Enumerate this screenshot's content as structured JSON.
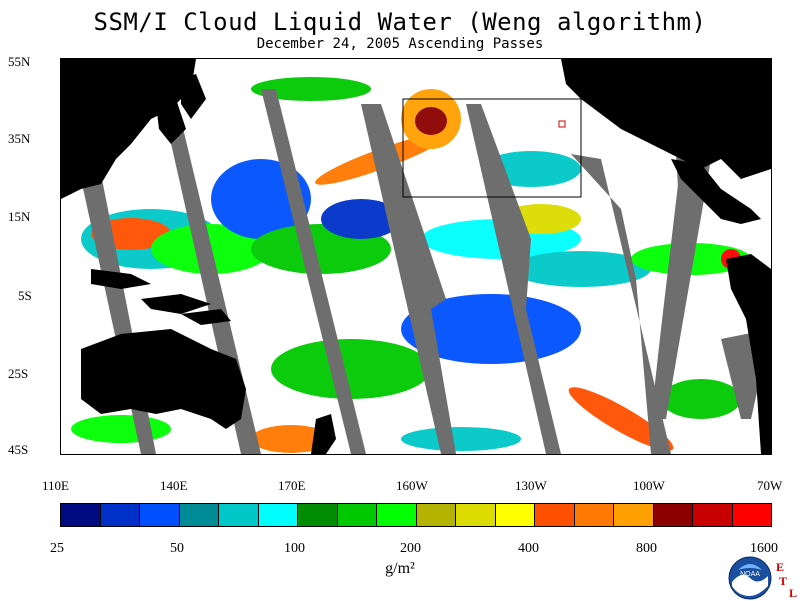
{
  "title": "SSM/I Cloud Liquid Water (Weng algorithm)",
  "subtitle": "December 24, 2005  Ascending Passes",
  "latitude_labels": [
    "55N",
    "35N",
    "15N",
    "5S",
    "25S",
    "45S"
  ],
  "longitude_labels": [
    "110E",
    "140E",
    "170E",
    "160W",
    "130W",
    "100W",
    "70W"
  ],
  "colorbar": {
    "tick_labels": [
      "25",
      "50",
      "100",
      "200",
      "400",
      "800",
      "1600"
    ],
    "units": "g/m²",
    "colors": [
      "#000a80",
      "#0030c8",
      "#0050ff",
      "#008c96",
      "#00c8c8",
      "#00ffff",
      "#008c00",
      "#00c800",
      "#00ff00",
      "#b4b400",
      "#dcdc00",
      "#ffff00",
      "#ff5000",
      "#ff7800",
      "#ffa000",
      "#8c0000",
      "#c80000",
      "#ff0000"
    ]
  },
  "colors": {
    "land": "#000000",
    "no_data": "#6e6e6e",
    "background": "#ffffff"
  },
  "logo": {
    "icon": "noaa-logo-icon",
    "text": "NOAA",
    "etl_letters": [
      "E",
      "T",
      "L"
    ]
  }
}
